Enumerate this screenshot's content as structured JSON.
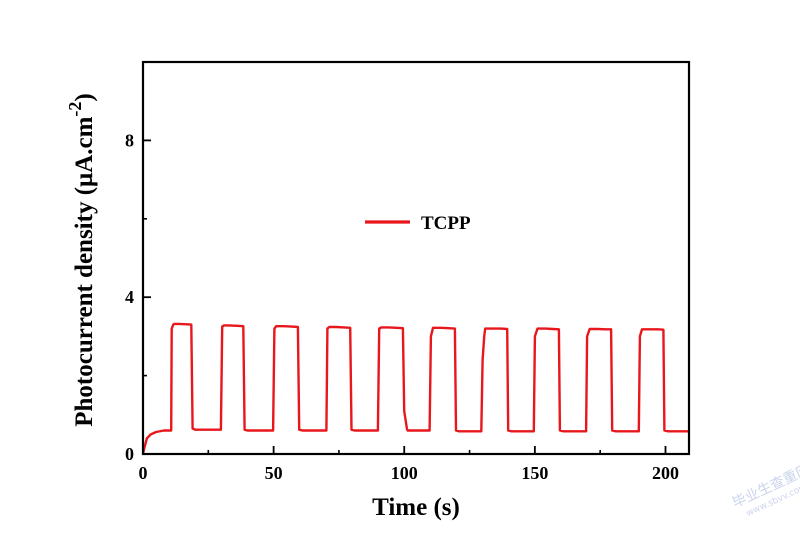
{
  "chart_data": {
    "type": "line",
    "xlabel": "Time (s)",
    "ylabel_main": "Photocurrent density (μA.cm",
    "ylabel_sup": "-2",
    "ylabel_close": ")",
    "xlim": [
      0,
      209
    ],
    "ylim": [
      0,
      10
    ],
    "xticks": [
      0,
      50,
      100,
      150,
      200
    ],
    "yticks": [
      0,
      4,
      8
    ],
    "legend_position": "center",
    "series": [
      {
        "name": "TCPP",
        "color": "#e8171c",
        "x": [
          0,
          0.5,
          1.5,
          3,
          5,
          8,
          10.8,
          11,
          11.6,
          12,
          13.5,
          16,
          18.5,
          19,
          20,
          22,
          25,
          29.8,
          30.3,
          31,
          33,
          36,
          38.4,
          38.9,
          40,
          43,
          46,
          49.8,
          50.3,
          51,
          54,
          57,
          59.3,
          59.8,
          61,
          64,
          67,
          70.2,
          70.6,
          71.3,
          74,
          77,
          79.3,
          79.8,
          81,
          84,
          87,
          89.9,
          90.4,
          91.2,
          94,
          97,
          99.5,
          100,
          101,
          101.3,
          104,
          107,
          109.7,
          110.2,
          111,
          114,
          117,
          119.4,
          119.8,
          121,
          124,
          127,
          129.5,
          130,
          130.6,
          131,
          134,
          137,
          139.4,
          139.8,
          141,
          144,
          147,
          149.6,
          150,
          151,
          154,
          157,
          159.2,
          159.6,
          161,
          164,
          167,
          169.6,
          170,
          171,
          174,
          177,
          179.2,
          179.6,
          181,
          184,
          187,
          189.8,
          190.2,
          191,
          194,
          197,
          199.2,
          199.6,
          201,
          204,
          209
        ],
        "y": [
          0,
          0.15,
          0.4,
          0.5,
          0.56,
          0.6,
          0.6,
          3.2,
          3.3,
          3.32,
          3.32,
          3.31,
          3.3,
          0.65,
          0.62,
          0.62,
          0.62,
          0.62,
          3.25,
          3.28,
          3.28,
          3.27,
          3.26,
          0.62,
          0.6,
          0.6,
          0.6,
          0.6,
          3.2,
          3.26,
          3.26,
          3.25,
          3.24,
          0.62,
          0.6,
          0.6,
          0.6,
          0.6,
          3.2,
          3.24,
          3.24,
          3.23,
          3.22,
          0.62,
          0.6,
          0.6,
          0.6,
          0.6,
          3.2,
          3.23,
          3.23,
          3.22,
          3.21,
          1.1,
          0.65,
          0.6,
          0.6,
          0.6,
          0.6,
          3.0,
          3.22,
          3.22,
          3.21,
          3.2,
          0.6,
          0.58,
          0.58,
          0.58,
          0.58,
          2.4,
          3.0,
          3.2,
          3.2,
          3.2,
          3.19,
          0.6,
          0.58,
          0.58,
          0.58,
          0.58,
          3.0,
          3.2,
          3.2,
          3.19,
          3.18,
          0.6,
          0.58,
          0.58,
          0.58,
          0.58,
          3.0,
          3.19,
          3.19,
          3.18,
          3.18,
          0.6,
          0.58,
          0.58,
          0.58,
          0.58,
          3.0,
          3.18,
          3.18,
          3.18,
          3.17,
          0.6,
          0.58,
          0.58,
          0.58
        ]
      }
    ]
  },
  "watermark": {
    "line1": "毕业生查重网",
    "line2": "www.sbvv.com"
  }
}
